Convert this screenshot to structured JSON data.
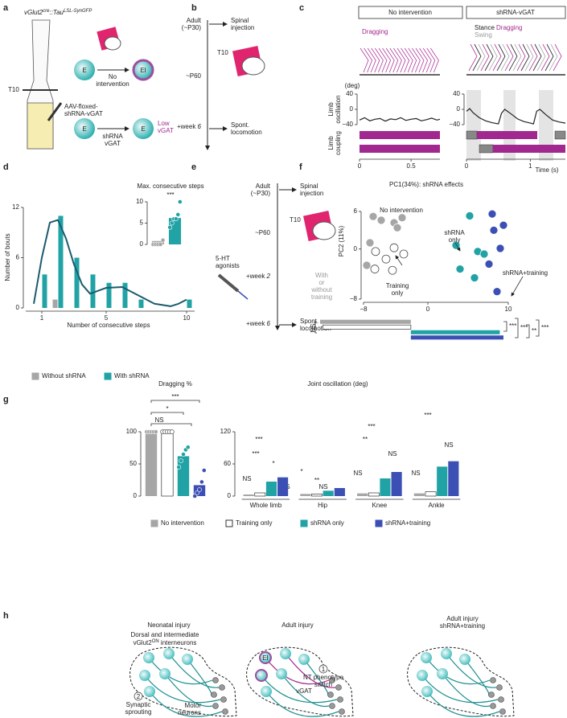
{
  "figure": {
    "a": {
      "label": "a",
      "title": [
        "vGlut2",
        "cre",
        "::Tau",
        "LSL-SynGFP"
      ],
      "cells": [
        "E",
        "EI",
        "E",
        "E"
      ],
      "no_intervention": [
        "No",
        "intervention"
      ],
      "level": "T10",
      "virus": [
        "AAV-floxed-",
        "shRNA-vGAT"
      ],
      "knockdown": [
        "shRNA",
        "vGAT"
      ],
      "result": [
        "Low",
        "vGAT"
      ]
    },
    "b": {
      "label": "b",
      "steps": [
        [
          "Adult",
          "(~P30)"
        ],
        [
          "~P60"
        ],
        [
          "+week ",
          "6"
        ]
      ],
      "events": [
        [
          "Spinal",
          "injection"
        ],
        [
          "Spont.",
          "locomotion"
        ]
      ],
      "level": "T10"
    },
    "c": {
      "label": "c",
      "headers": [
        "No intervention",
        "shRNA-vGAT"
      ],
      "dragging": [
        "Dragging",
        "Dragging"
      ],
      "stance": "Stance",
      "swing": "Swing",
      "unit": "(deg)",
      "rows": [
        [
          "Limb",
          "oscillation"
        ],
        [
          "Limb",
          "coupling"
        ]
      ]
    },
    "d": {
      "label": "d"
    },
    "e": {
      "label": "e",
      "steps": [
        [
          "Adult",
          "(~P30)"
        ],
        [
          "~P60"
        ],
        [
          "+week ",
          "2"
        ],
        [
          "+week ",
          "6"
        ]
      ],
      "events": [
        [
          "Spinal",
          "injection"
        ],
        [
          "Spont.",
          "locomotion"
        ]
      ],
      "level": "T10",
      "drug": [
        "5-HT",
        "agonists"
      ],
      "training": [
        "With",
        "or",
        "without",
        "training"
      ]
    },
    "f": {
      "label": "f",
      "significance": [
        "NS",
        "***",
        "***",
        "**",
        "***"
      ]
    },
    "g": {
      "label": "g",
      "significance_dragging": [
        "NS",
        "*",
        "***"
      ],
      "significance_joint": [
        "NS",
        "***",
        "***",
        "*",
        "*",
        "**",
        "NS",
        "NS",
        "***",
        "**",
        "NS",
        "NS",
        "***",
        "NS",
        "NS"
      ]
    },
    "h": {
      "label": "h",
      "titles": [
        [
          "Neonatal injury"
        ],
        [
          "Adult injury"
        ],
        [
          "Adult injury",
          "shRNA+training"
        ]
      ],
      "population": [
        "Dorsal and intermediate",
        "vGlut2",
        "ON",
        " interneurons"
      ],
      "markers": [
        "2",
        "1"
      ],
      "sprouting": [
        "Synaptic",
        "sprouting"
      ],
      "motor": [
        "Motor",
        "neurons"
      ],
      "cell": "EI",
      "switch": [
        "NT phenotype",
        "switch"
      ],
      "transmitter": "vGAT"
    }
  },
  "chart_data": [
    {
      "type": "line",
      "color": "#222222",
      "x": [
        0,
        0.05,
        0.1,
        0.15,
        0.2,
        0.25,
        0.3,
        0.35,
        0.4,
        0.45,
        0.5,
        0.55,
        0.6,
        0.65,
        0.7,
        0.75,
        0.78
      ],
      "values": [
        -28,
        -22,
        -30,
        -26,
        -24,
        -31,
        -25,
        -27,
        -22,
        -29,
        -26,
        -24,
        -30,
        -27,
        -23,
        -28,
        -26
      ],
      "xlim": [
        0,
        0.78
      ],
      "ylim": [
        -40,
        40
      ],
      "xticks": [
        0,
        0.5
      ],
      "yticks": [
        {
          "value": -40,
          "label": "−40"
        },
        0,
        40
      ]
    },
    {
      "type": "line",
      "color": "#222222",
      "x": [
        0,
        0.05,
        0.1,
        0.2,
        0.3,
        0.4,
        0.5,
        0.55,
        0.6,
        0.7,
        0.8,
        0.9,
        1.0,
        1.05,
        1.1,
        1.15,
        1.25,
        1.35,
        1.45,
        1.55
      ],
      "values": [
        -5,
        2,
        -8,
        -22,
        -30,
        -35,
        -38,
        -10,
        0,
        -12,
        -25,
        -32,
        -36,
        -38,
        -5,
        0,
        -15,
        -28,
        -33,
        -36
      ],
      "xlim": [
        0,
        1.55
      ],
      "ylim": [
        -40,
        40
      ],
      "xticks": [
        0,
        1
      ],
      "yticks": [
        {
          "value": -40,
          "label": "−40"
        },
        0,
        40
      ],
      "xlabel": "Time (s)"
    },
    {
      "type": "bar",
      "x": [
        1,
        2,
        3,
        4,
        5,
        6,
        7,
        8,
        9,
        10
      ],
      "series": [
        {
          "name": "Without shRNA",
          "color": "#a6a6a6",
          "values": [
            0,
            1,
            0,
            0,
            0,
            0,
            0,
            0,
            0,
            0
          ]
        },
        {
          "name": "With shRNA",
          "color": "#21a3a6",
          "values": [
            4,
            11,
            6,
            4,
            3,
            3,
            1,
            0,
            0,
            1
          ]
        }
      ],
      "curve": {
        "color": "#1c5a6e",
        "x": [
          0.5,
          1,
          1.5,
          2,
          2.5,
          3,
          3.5,
          4,
          5,
          6,
          7,
          8,
          9,
          9.5,
          10
        ],
        "values": [
          0.5,
          6,
          10.2,
          10.5,
          8.3,
          5.2,
          2.8,
          1.7,
          2.4,
          2.5,
          1.5,
          0.5,
          0.2,
          0.5,
          1
        ]
      },
      "xlim": [
        0,
        10.5
      ],
      "ylim": [
        0,
        12
      ],
      "xticks": [
        1,
        5,
        10
      ],
      "yticks": [
        0,
        6,
        12
      ],
      "xlabel": "Number of consecutive steps",
      "ylabel": "Number of bouts"
    },
    {
      "type": "bar",
      "title": "Max. consecutive steps",
      "annotation": "***",
      "categories": [
        null,
        null
      ],
      "values": [
        0.8,
        6.2
      ],
      "colors": [
        "#a6a6a6",
        "#21a3a6"
      ],
      "points": [
        [
          0,
          0,
          0,
          0,
          1
        ],
        [
          4,
          5,
          6,
          6,
          7,
          10
        ]
      ],
      "ylim": [
        0,
        10
      ],
      "yticks": [
        0,
        5,
        10
      ]
    },
    {
      "type": "scatter",
      "title": "PC1(34%): shRNA effects",
      "ylabel": "PC2 (11%)",
      "annotations": [
        [
          "No intervention"
        ],
        [
          "shRNA",
          "only"
        ],
        [
          "Training",
          "only"
        ],
        [
          "shRNA+training"
        ]
      ],
      "series": [
        {
          "color": "#a6a6a6",
          "x": [
            -6.8,
            -5.8,
            -4.2,
            -3.2,
            -3.8,
            -7.2,
            -7.6
          ],
          "values": [
            5.2,
            4.6,
            4.2,
            5.0,
            3.4,
            1.0,
            -2.6
          ]
        },
        {
          "color": "#ffffff",
          "x": [
            -6.5,
            -4.2,
            -3.0,
            -5.2,
            -6.6,
            -4.4
          ],
          "values": [
            -0.4,
            0.2,
            -0.8,
            -1.6,
            -3.2,
            -3.4
          ]
        },
        {
          "color": "#21a3a6",
          "x": [
            5.2,
            3.5,
            6.2,
            7.0,
            4.0,
            5.8
          ],
          "values": [
            5.3,
            0.6,
            -0.4,
            -0.8,
            -3.2,
            -4.6
          ]
        },
        {
          "color": "#3c4fb5",
          "x": [
            8.0,
            9.4,
            8.2,
            9.0,
            7.6,
            8.6
          ],
          "values": [
            5.6,
            3.8,
            3.0,
            0.1,
            -2.4,
            -6.8
          ]
        }
      ],
      "xlim": [
        -8,
        10
      ],
      "ylim": [
        -8,
        6
      ],
      "xticks": [
        {
          "value": -8,
          "label": "−8"
        },
        0,
        10
      ],
      "yticks": [
        {
          "value": -8,
          "label": "−8"
        },
        0,
        6
      ]
    },
    {
      "type": "bar",
      "orientation": "horizontal",
      "values": [
        -10,
        -9.7,
        9.8,
        10.2
      ],
      "colors": [
        "#a6a6a6",
        "#ffffff",
        "#21a3a6",
        "#3c4fb5"
      ],
      "xlim": [
        -10,
        11
      ]
    },
    {
      "type": "bar",
      "title": "Dragging %",
      "categories": [
        null,
        null,
        null,
        null
      ],
      "values": [
        100,
        100,
        62,
        17
      ],
      "colors": [
        "#a6a6a6",
        "#ffffff",
        "#21a3a6",
        "#3c4fb5"
      ],
      "points": [
        [
          100,
          100,
          100,
          100,
          100
        ],
        [
          100,
          100,
          100,
          100,
          100
        ],
        [
          45,
          55,
          65,
          72,
          76
        ],
        [
          0,
          5,
          10,
          22,
          40
        ]
      ],
      "ylim": [
        0,
        100
      ],
      "yticks": [
        0,
        50,
        100
      ]
    },
    {
      "type": "bar",
      "title": "Joint oscillation (deg)",
      "categories": [
        "Whole limb",
        "Hip",
        "Knee",
        "Ankle"
      ],
      "series": [
        {
          "name": "No intervention",
          "color": "#a6a6a6",
          "values": [
            3,
            4,
            5,
            5
          ]
        },
        {
          "name": "Training only",
          "color": "#ffffff",
          "values": [
            6,
            4,
            6,
            8
          ]
        },
        {
          "name": "shRNA only",
          "color": "#21a3a6",
          "values": [
            27,
            10,
            33,
            55
          ]
        },
        {
          "name": "shRNA+training",
          "color": "#3c4fb5",
          "values": [
            35,
            15,
            45,
            65
          ]
        }
      ],
      "ylim": [
        0,
        120
      ],
      "yticks": [
        0,
        60,
        120
      ]
    }
  ]
}
